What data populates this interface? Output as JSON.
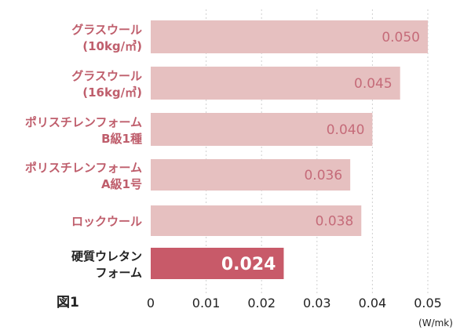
{
  "chart_data": {
    "type": "bar",
    "orientation": "horizontal",
    "figure_label": "図1",
    "unit_label": "(W/mk)",
    "xlim": [
      0,
      0.05
    ],
    "xticks": [
      "0",
      "0.01",
      "0.02",
      "0.03",
      "0.04",
      "0.05"
    ],
    "grid": "vertical dotted",
    "categories": [
      [
        "グラスウール",
        "(10kg/㎥)"
      ],
      [
        "グラスウール",
        "(16kg/㎥)"
      ],
      [
        "ポリスチレンフォーム",
        "B級1種"
      ],
      [
        "ポリスチレンフォーム",
        "A級1号"
      ],
      [
        "ロックウール"
      ],
      [
        "硬質ウレタン",
        "フォーム"
      ]
    ],
    "values": [
      0.05,
      0.045,
      0.04,
      0.036,
      0.038,
      0.024
    ],
    "value_labels": [
      "0.050",
      "0.045",
      "0.040",
      "0.036",
      "0.038",
      "0.024"
    ],
    "highlight_index": 5
  },
  "colors": {
    "bar": "#e6c0c0",
    "bar_highlight": "#c85a69",
    "label": "#bf5e6c",
    "label_highlight": "#222222",
    "value_text": "#c56b79",
    "value_text_highlight": "#ffffff",
    "grid": "#cfcfcf",
    "axis_text": "#222222"
  }
}
